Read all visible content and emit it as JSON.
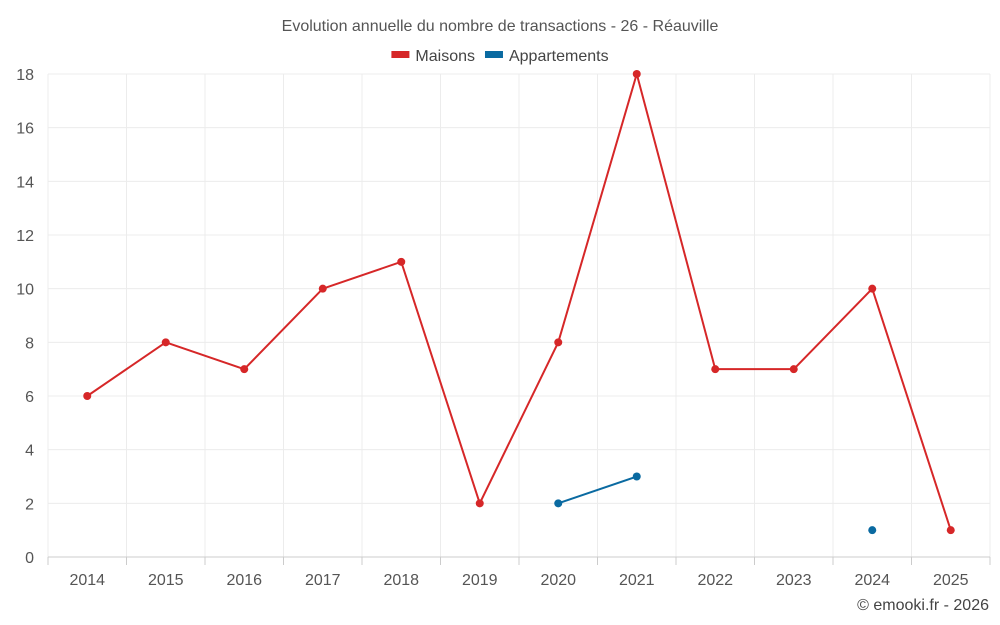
{
  "chart_data": {
    "type": "line",
    "title": "Evolution annuelle du nombre de transactions - 26 - Réauville",
    "categories": [
      "2014",
      "2015",
      "2016",
      "2017",
      "2018",
      "2019",
      "2020",
      "2021",
      "2022",
      "2023",
      "2024",
      "2025"
    ],
    "ylim": [
      0,
      18
    ],
    "yticks": [
      0,
      2,
      4,
      6,
      8,
      10,
      12,
      14,
      16,
      18
    ],
    "grid": true,
    "legend_position": "top-center",
    "series": [
      {
        "name": "Maisons",
        "color": "#d62728",
        "values": [
          6,
          8,
          7,
          10,
          11,
          2,
          8,
          18,
          7,
          7,
          10,
          1
        ]
      },
      {
        "name": "Appartements",
        "color": "#0a6aa1",
        "values": [
          null,
          null,
          null,
          null,
          null,
          null,
          2,
          3,
          null,
          null,
          1,
          null
        ]
      }
    ],
    "credit": "© emooki.fr - 2026"
  }
}
